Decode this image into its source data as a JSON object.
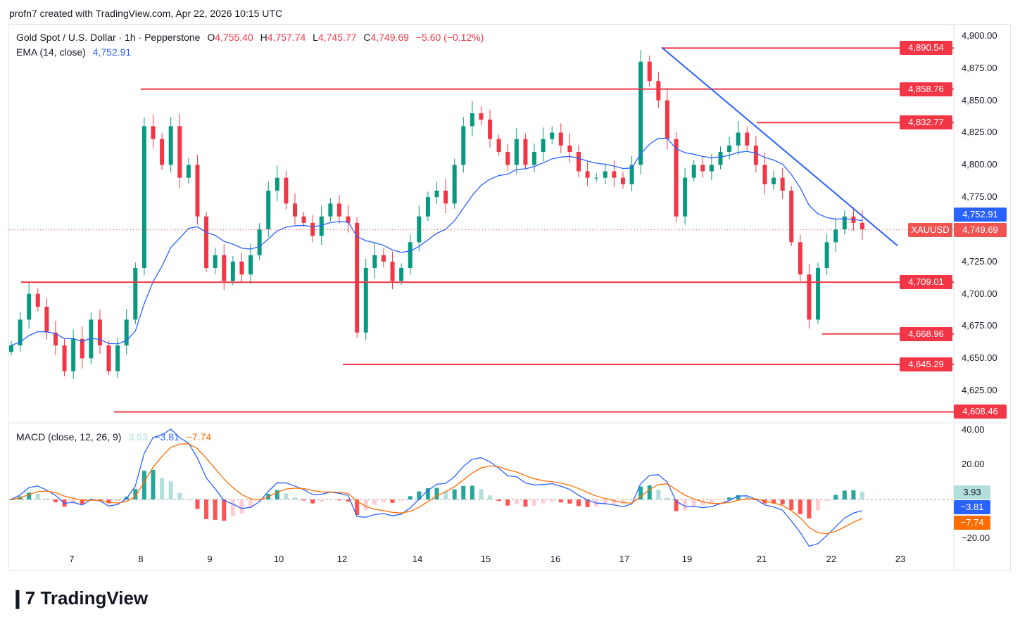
{
  "credit": "profn7 created with TradingView.com, Apr 22, 2026 10:15 UTC",
  "legend": {
    "symbol": "Gold Spot / U.S. Dollar · 1h · Pepperstone",
    "o_label": "O",
    "open": "4,755.40",
    "h_label": "H",
    "high": "4,757.74",
    "l_label": "L",
    "low": "4,745.77",
    "c_label": "C",
    "close": "4,749.69",
    "change": "−5.60 (−0.12%)",
    "ema_label": "EMA (14, close)",
    "ema_value": "4,752.91",
    "macd_label": "MACD (close, 12, 26, 9)",
    "macd_hist": "3.93",
    "macd_line": "−3.81",
    "macd_signal": "−7.74"
  },
  "logo": "TradingView",
  "colors": {
    "up": "#089981",
    "down": "#F23645",
    "ema": "#2962FF",
    "macd": "#2962FF",
    "signal": "#FF6D00",
    "level": "#F23645",
    "trend": "#2962FF"
  },
  "chart_data": {
    "type": "candlestick",
    "symbol_tag": "XAUUSD",
    "price_ticks": [
      "4,900.00",
      "4,875.00",
      "4,850.00",
      "4,825.00",
      "4,800.00",
      "4,775.00",
      "4,725.00",
      "4,700.00",
      "4,675.00",
      "4,650.00",
      "4,625.00"
    ],
    "macd_ticks": [
      "40.00",
      "20.00",
      "−20.00"
    ],
    "x_ticks": [
      "7",
      "8",
      "9",
      "10",
      "12",
      "14",
      "15",
      "16",
      "17",
      "19",
      "21",
      "22",
      "23"
    ],
    "ylim": [
      4600,
      4910
    ],
    "closes": [
      4660,
      4680,
      4700,
      4690,
      4670,
      4660,
      4640,
      4665,
      4650,
      4680,
      4660,
      4640,
      4660,
      4680,
      4720,
      4830,
      4820,
      4800,
      4830,
      4790,
      4800,
      4760,
      4720,
      4730,
      4710,
      4725,
      4715,
      4730,
      4750,
      4780,
      4790,
      4770,
      4760,
      4755,
      4745,
      4760,
      4770,
      4760,
      4755,
      4670,
      4720,
      4730,
      4725,
      4710,
      4720,
      4740,
      4760,
      4775,
      4780,
      4770,
      4800,
      4830,
      4840,
      4835,
      4820,
      4810,
      4800,
      4820,
      4800,
      4810,
      4820,
      4825,
      4815,
      4810,
      4795,
      4790,
      4790,
      4795,
      4790,
      4785,
      4800,
      4880,
      4865,
      4850,
      4820,
      4760,
      4790,
      4800,
      4795,
      4800,
      4810,
      4815,
      4825,
      4815,
      4800,
      4785,
      4790,
      4780,
      4740,
      4715,
      4680,
      4720,
      4740,
      4750,
      4760,
      4755,
      4750
    ],
    "levels": [
      {
        "label": "4,890.54",
        "value": 4890.54
      },
      {
        "label": "4,858.76",
        "value": 4858.76
      },
      {
        "label": "4,832.77",
        "value": 4832.77
      },
      {
        "label": "4,709.01",
        "value": 4709.01
      },
      {
        "label": "4,668.96",
        "value": 4668.96
      },
      {
        "label": "4,645.29",
        "value": 4645.29
      },
      {
        "label": "4,608.46",
        "value": 4608.46
      }
    ],
    "trendline": {
      "from": 4890,
      "to": 4745
    },
    "ema_period": 14,
    "ema_last": "4,752.91",
    "last_price": "4,749.69",
    "last_value": 4749.69
  }
}
